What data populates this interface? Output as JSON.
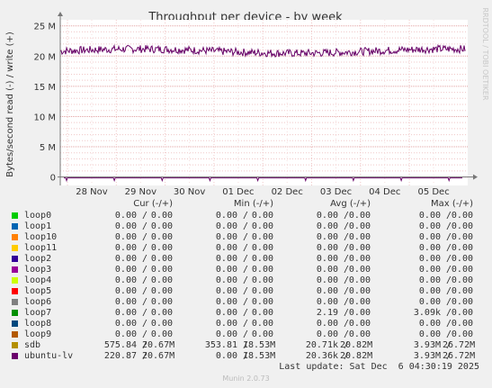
{
  "chart_data": {
    "type": "line",
    "title": "Throughput per device - by week",
    "ylabel": "Bytes/second read (-) / write (+)",
    "watermark": "RRDTOOL / TOBI OETIKER",
    "y_ticks": [
      "0",
      "5 M",
      "10 M",
      "15 M",
      "20 M",
      "25 M"
    ],
    "y_tick_values": [
      0,
      5,
      10,
      15,
      20,
      25
    ],
    "ylim": [
      -1.4,
      26
    ],
    "x_ticks": [
      "28 Nov",
      "29 Nov",
      "30 Nov",
      "01 Dec",
      "02 Dec",
      "03 Dec",
      "04 Dec",
      "05 Dec"
    ],
    "grid": true,
    "series": [
      {
        "name": "ubuntu-lv",
        "color": "#660066",
        "mean": 20.82,
        "min": 18.53,
        "max": 26.72,
        "variation": 1.0
      },
      {
        "name": "sdb",
        "color": "#CC9900",
        "mean": 20.82,
        "min": 18.53,
        "max": 26.72,
        "variation": 1.0
      }
    ],
    "baseline_series": {
      "name": "read",
      "color": "#660066",
      "value": 0
    }
  },
  "legend": {
    "headers": {
      "cur": "Cur (-/+)",
      "min": "Min (-/+)",
      "avg": "Avg (-/+)",
      "max": "Max (-/+)"
    },
    "rows": [
      {
        "name": "loop0",
        "color": "#00CC00",
        "cur_r": "0.00",
        "cur_w": "0.00",
        "min_r": "0.00",
        "min_w": "0.00",
        "avg_r": "0.00",
        "avg_w": "0.00",
        "max_r": "0.00",
        "max_w": "0.00"
      },
      {
        "name": "loop1",
        "color": "#0066B3",
        "cur_r": "0.00",
        "cur_w": "0.00",
        "min_r": "0.00",
        "min_w": "0.00",
        "avg_r": "0.00",
        "avg_w": "0.00",
        "max_r": "0.00",
        "max_w": "0.00"
      },
      {
        "name": "loop10",
        "color": "#FF8000",
        "cur_r": "0.00",
        "cur_w": "0.00",
        "min_r": "0.00",
        "min_w": "0.00",
        "avg_r": "0.00",
        "avg_w": "0.00",
        "max_r": "0.00",
        "max_w": "0.00"
      },
      {
        "name": "loop11",
        "color": "#FFCC00",
        "cur_r": "0.00",
        "cur_w": "0.00",
        "min_r": "0.00",
        "min_w": "0.00",
        "avg_r": "0.00",
        "avg_w": "0.00",
        "max_r": "0.00",
        "max_w": "0.00"
      },
      {
        "name": "loop2",
        "color": "#330099",
        "cur_r": "0.00",
        "cur_w": "0.00",
        "min_r": "0.00",
        "min_w": "0.00",
        "avg_r": "0.00",
        "avg_w": "0.00",
        "max_r": "0.00",
        "max_w": "0.00"
      },
      {
        "name": "loop3",
        "color": "#990099",
        "cur_r": "0.00",
        "cur_w": "0.00",
        "min_r": "0.00",
        "min_w": "0.00",
        "avg_r": "0.00",
        "avg_w": "0.00",
        "max_r": "0.00",
        "max_w": "0.00"
      },
      {
        "name": "loop4",
        "color": "#CCFF00",
        "cur_r": "0.00",
        "cur_w": "0.00",
        "min_r": "0.00",
        "min_w": "0.00",
        "avg_r": "0.00",
        "avg_w": "0.00",
        "max_r": "0.00",
        "max_w": "0.00"
      },
      {
        "name": "loop5",
        "color": "#FF0000",
        "cur_r": "0.00",
        "cur_w": "0.00",
        "min_r": "0.00",
        "min_w": "0.00",
        "avg_r": "0.00",
        "avg_w": "0.00",
        "max_r": "0.00",
        "max_w": "0.00"
      },
      {
        "name": "loop6",
        "color": "#808080",
        "cur_r": "0.00",
        "cur_w": "0.00",
        "min_r": "0.00",
        "min_w": "0.00",
        "avg_r": "0.00",
        "avg_w": "0.00",
        "max_r": "0.00",
        "max_w": "0.00"
      },
      {
        "name": "loop7",
        "color": "#008F00",
        "cur_r": "0.00",
        "cur_w": "0.00",
        "min_r": "0.00",
        "min_w": "0.00",
        "avg_r": "2.19",
        "avg_w": "0.00",
        "max_r": "3.09k",
        "max_w": "0.00"
      },
      {
        "name": "loop8",
        "color": "#00487D",
        "cur_r": "0.00",
        "cur_w": "0.00",
        "min_r": "0.00",
        "min_w": "0.00",
        "avg_r": "0.00",
        "avg_w": "0.00",
        "max_r": "0.00",
        "max_w": "0.00"
      },
      {
        "name": "loop9",
        "color": "#B35A00",
        "cur_r": "0.00",
        "cur_w": "0.00",
        "min_r": "0.00",
        "min_w": "0.00",
        "avg_r": "0.00",
        "avg_w": "0.00",
        "max_r": "0.00",
        "max_w": "0.00"
      },
      {
        "name": "sdb",
        "color": "#B38F00",
        "cur_r": "575.84",
        "cur_w": "20.67M",
        "min_r": "353.81",
        "min_w": "18.53M",
        "avg_r": "20.71k",
        "avg_w": "20.82M",
        "max_r": "3.93M",
        "max_w": "26.72M"
      },
      {
        "name": "ubuntu-lv",
        "color": "#6B006B",
        "cur_r": "220.87",
        "cur_w": "20.67M",
        "min_r": "0.00",
        "min_w": "18.53M",
        "avg_r": "20.36k",
        "avg_w": "20.82M",
        "max_r": "3.93M",
        "max_w": "26.72M"
      }
    ]
  },
  "footer": {
    "last_update": "Last update: Sat Dec  6 04:30:19 2025",
    "munin": "Munin 2.0.73"
  }
}
